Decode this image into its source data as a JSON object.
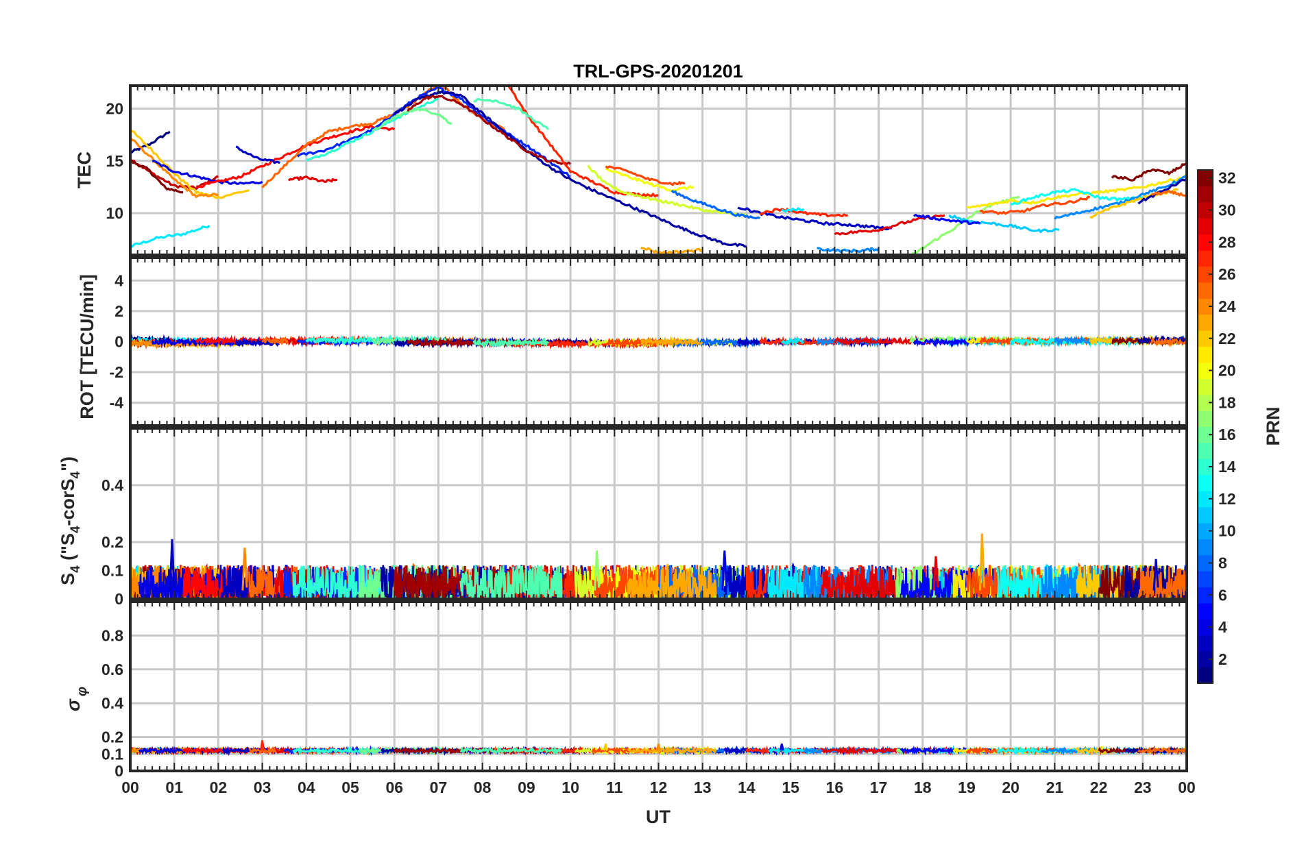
{
  "chart_data": {
    "type": "line",
    "title": "TRL-GPS-20201201",
    "xlabel": "UT",
    "x_range_hours": [
      0,
      24
    ],
    "x_tick_labels": [
      "00",
      "01",
      "02",
      "03",
      "04",
      "05",
      "06",
      "07",
      "08",
      "09",
      "10",
      "11",
      "12",
      "13",
      "14",
      "15",
      "16",
      "17",
      "18",
      "19",
      "20",
      "21",
      "22",
      "23",
      "00"
    ],
    "grid": true,
    "colorbar": {
      "label": "PRN",
      "range": [
        1,
        32
      ],
      "tick_values": [
        2,
        4,
        6,
        8,
        10,
        12,
        14,
        16,
        18,
        20,
        22,
        24,
        26,
        28,
        30,
        32
      ],
      "tick_labels": [
        "2",
        "4",
        "6",
        "8",
        "10",
        "12",
        "14",
        "16",
        "18",
        "20",
        "22",
        "24",
        "26",
        "28",
        "30",
        "32"
      ]
    },
    "panels": [
      {
        "id": "tec",
        "ylabel": "TEC",
        "ylim": [
          6,
          22.2
        ],
        "yticks": [
          10,
          15,
          20
        ],
        "ytick_labels": [
          "10",
          "15",
          "20"
        ],
        "series": [
          {
            "prn": 1,
            "t": [
              0.0,
              0.4,
              0.9
            ],
            "v": [
              15.8,
              16.5,
              17.8
            ]
          },
          {
            "prn": 12,
            "t": [
              0.0,
              0.6,
              1.2,
              1.8
            ],
            "v": [
              6.8,
              7.6,
              8.0,
              8.8
            ]
          },
          {
            "prn": 30,
            "t": [
              0.0,
              0.5,
              1.0,
              1.5,
              2.0
            ],
            "v": [
              15.2,
              13.8,
              12.6,
              12.4,
              13.5
            ]
          },
          {
            "prn": 32,
            "t": [
              0.0,
              0.4,
              0.8,
              1.2
            ],
            "v": [
              15.0,
              14.2,
              12.4,
              12.0
            ]
          },
          {
            "prn": 22,
            "t": [
              0.0,
              0.5,
              1.0,
              1.5,
              2.0,
              2.7
            ],
            "v": [
              18.0,
              16.0,
              13.8,
              12.0,
              11.5,
              12.2
            ]
          },
          {
            "prn": 24,
            "t": [
              0.0,
              0.5,
              1.0,
              1.5,
              2.0
            ],
            "v": [
              17.2,
              15.2,
              13.2,
              11.6,
              11.8
            ]
          },
          {
            "prn": 4,
            "t": [
              0.5,
              1.0,
              1.5,
              2.0,
              2.5,
              3.0
            ],
            "v": [
              15.0,
              14.0,
              13.5,
              13.0,
              12.8,
              13.0
            ]
          },
          {
            "prn": 28,
            "t": [
              1.5,
              2.0,
              2.5,
              3.0,
              3.5,
              4.0,
              4.5,
              5.0,
              5.5,
              6.0
            ],
            "v": [
              12.5,
              13.0,
              13.5,
              14.5,
              15.5,
              16.5,
              17.2,
              17.8,
              18.3,
              18.0
            ]
          },
          {
            "prn": 3,
            "t": [
              2.4,
              2.9,
              3.4
            ],
            "v": [
              16.3,
              15.2,
              14.8
            ]
          },
          {
            "prn": 25,
            "t": [
              3.0,
              3.5,
              4.0,
              4.5,
              5.0,
              5.5,
              6.0,
              6.4,
              6.8,
              7.1,
              7.5,
              8.0,
              8.5
            ],
            "v": [
              12.5,
              14.5,
              16.5,
              17.8,
              18.3,
              18.6,
              19.5,
              20.5,
              21.8,
              22.2,
              20.5,
              19.0,
              18.0
            ]
          },
          {
            "prn": 29,
            "t": [
              3.6,
              4.0,
              4.4,
              4.7
            ],
            "v": [
              13.2,
              13.4,
              13.0,
              13.2
            ]
          },
          {
            "prn": 6,
            "t": [
              3.8,
              4.4,
              5.0,
              5.6,
              6.0,
              6.5,
              7.0,
              7.5,
              8.0,
              8.5,
              9.0,
              9.5,
              10.0
            ],
            "v": [
              15.5,
              16.0,
              17.0,
              18.2,
              19.5,
              21.0,
              22.0,
              21.0,
              19.3,
              17.8,
              16.5,
              15.0,
              13.5
            ]
          },
          {
            "prn": 14,
            "t": [
              4.0,
              4.5,
              5.0,
              5.5,
              6.0,
              6.5,
              7.0
            ],
            "v": [
              15.0,
              15.8,
              16.8,
              17.8,
              19.0,
              20.0,
              21.0
            ]
          },
          {
            "prn": 16,
            "t": [
              5.5,
              6.0,
              6.5,
              7.0,
              7.3
            ],
            "v": [
              17.8,
              19.2,
              20.0,
              19.5,
              18.5
            ]
          },
          {
            "prn": 2,
            "t": [
              6.0,
              6.5,
              7.0,
              7.5,
              8.0,
              8.5,
              9.0,
              9.5,
              10.0,
              10.5,
              11.0,
              11.5,
              12.0,
              12.5,
              13.0,
              13.5,
              14.0
            ],
            "v": [
              19.5,
              20.8,
              21.6,
              21.3,
              19.5,
              17.8,
              16.0,
              14.5,
              13.2,
              12.2,
              11.3,
              10.4,
              9.5,
              8.6,
              7.8,
              7.1,
              6.8
            ]
          },
          {
            "prn": 31,
            "t": [
              6.3,
              6.7,
              7.0,
              7.5,
              8.0,
              8.5,
              9.0,
              9.5,
              10.0
            ],
            "v": [
              19.8,
              21.0,
              21.2,
              20.5,
              19.0,
              17.5,
              16.0,
              15.0,
              14.7
            ]
          },
          {
            "prn": 27,
            "t": [
              8.6,
              9.0,
              9.5,
              10.0,
              10.5,
              11.0,
              11.5,
              12.0
            ],
            "v": [
              22.2,
              19.5,
              16.8,
              14.0,
              13.0,
              12.0,
              11.8,
              11.7
            ]
          },
          {
            "prn": 15,
            "t": [
              7.8,
              8.3,
              8.8,
              9.5
            ],
            "v": [
              20.8,
              20.8,
              20.0,
              18.0
            ]
          },
          {
            "prn": 19,
            "t": [
              10.4,
              10.8,
              11.2,
              11.6,
              12.0,
              12.5,
              13.0,
              13.5,
              14.0
            ],
            "v": [
              14.5,
              12.8,
              12.0,
              11.6,
              11.2,
              10.8,
              10.3,
              10.0,
              9.8
            ]
          },
          {
            "prn": 20,
            "t": [
              10.8,
              11.3,
              11.8,
              12.3,
              12.8
            ],
            "v": [
              14.2,
              13.5,
              12.8,
              12.2,
              12.5
            ]
          },
          {
            "prn": 26,
            "t": [
              10.8,
              11.3,
              11.8,
              12.3,
              12.6
            ],
            "v": [
              14.5,
              14.0,
              13.2,
              12.8,
              12.9
            ]
          },
          {
            "prn": 8,
            "t": [
              12.3,
              12.8,
              13.3,
              13.8,
              14.3
            ],
            "v": [
              12.1,
              11.2,
              10.5,
              9.8,
              9.5
            ]
          },
          {
            "prn": 23,
            "t": [
              11.6,
              12.0,
              12.5,
              13.0
            ],
            "v": [
              6.8,
              6.2,
              6.3,
              6.5
            ]
          },
          {
            "prn": 3,
            "t": [
              13.8,
              14.3,
              14.8,
              15.3,
              15.8,
              16.3,
              16.8,
              17.3
            ],
            "v": [
              10.6,
              10.0,
              9.6,
              9.3,
              9.0,
              8.9,
              8.7,
              8.5
            ]
          },
          {
            "prn": 27,
            "t": [
              14.3,
              14.8,
              15.3,
              15.8,
              16.3
            ],
            "v": [
              10.0,
              10.4,
              10.0,
              9.8,
              9.8
            ]
          },
          {
            "prn": 12,
            "t": [
              14.8,
              15.3
            ],
            "v": [
              10.2,
              10.4
            ]
          },
          {
            "prn": 9,
            "t": [
              15.6,
              16.1,
              16.6,
              17.0
            ],
            "v": [
              6.6,
              6.4,
              6.4,
              6.6
            ]
          },
          {
            "prn": 29,
            "t": [
              16.0,
              16.5,
              17.0,
              17.5,
              18.0,
              18.5
            ],
            "v": [
              8.0,
              8.2,
              8.4,
              9.0,
              9.5,
              9.8
            ]
          },
          {
            "prn": 17,
            "t": [
              17.7,
              18.2,
              18.7,
              19.2,
              19.7,
              20.2
            ],
            "v": [
              5.8,
              7.2,
              8.5,
              10.0,
              11.0,
              11.5
            ]
          },
          {
            "prn": 11,
            "t": [
              18.6,
              19.1,
              19.6,
              20.1,
              20.6,
              21.1
            ],
            "v": [
              9.8,
              9.2,
              9.0,
              8.7,
              8.3,
              8.4
            ]
          },
          {
            "prn": 5,
            "t": [
              17.8,
              18.3,
              18.8,
              19.3
            ],
            "v": [
              9.8,
              9.5,
              9.2,
              9.0
            ]
          },
          {
            "prn": 21,
            "t": [
              19.0,
              19.5,
              20.0,
              20.5,
              21.0,
              21.5,
              22.0,
              22.5,
              23.0,
              23.5,
              24.0
            ],
            "v": [
              10.5,
              10.8,
              11.2,
              11.0,
              11.5,
              11.8,
              12.0,
              12.2,
              12.5,
              13.0,
              13.5
            ]
          },
          {
            "prn": 26,
            "t": [
              19.3,
              19.8,
              20.3,
              20.8,
              21.3,
              21.8
            ],
            "v": [
              10.2,
              10.0,
              10.2,
              10.8,
              11.0,
              11.5
            ]
          },
          {
            "prn": 13,
            "t": [
              20.0,
              20.5,
              21.0,
              21.5,
              22.0,
              22.5,
              23.0
            ],
            "v": [
              10.8,
              11.5,
              12.0,
              12.2,
              11.5,
              11.3,
              11.5
            ]
          },
          {
            "prn": 9,
            "t": [
              21.0,
              21.5,
              22.0,
              22.5,
              23.0,
              23.5,
              24.0
            ],
            "v": [
              9.5,
              10.0,
              10.5,
              11.0,
              11.8,
              12.5,
              13.5
            ]
          },
          {
            "prn": 22,
            "t": [
              21.8,
              22.3,
              22.8,
              23.3,
              23.8
            ],
            "v": [
              9.6,
              10.5,
              11.2,
              11.8,
              12.2
            ]
          },
          {
            "prn": 32,
            "t": [
              22.3,
              22.8,
              23.2,
              23.6,
              24.0
            ],
            "v": [
              13.5,
              13.2,
              14.2,
              13.8,
              14.8
            ]
          },
          {
            "prn": 2,
            "t": [
              22.9,
              23.4,
              24.0
            ],
            "v": [
              11.0,
              12.0,
              13.3
            ]
          },
          {
            "prn": 25,
            "t": [
              23.2,
              23.6,
              24.0
            ],
            "v": [
              11.8,
              12.0,
              11.7
            ]
          }
        ]
      },
      {
        "id": "rot",
        "ylabel": "ROT [TECU/min]",
        "ylim": [
          -5.5,
          5.5
        ],
        "yticks": [
          -4,
          -2,
          0,
          2,
          4
        ],
        "ytick_labels": [
          "-4",
          "-2",
          "0",
          "2",
          "4"
        ],
        "typical_amplitude": 0.15
      },
      {
        "id": "s4",
        "ylabel": "S4 (\"S4-corS4\")",
        "ylabel_main": "S",
        "ylabel_sub": "4",
        "ylabel_paren_open": " (\"S",
        "ylabel_mid": "-corS",
        "ylabel_paren_close": "\")",
        "ylim": [
          0,
          0.6
        ],
        "yticks": [
          0,
          0.1,
          0.2,
          0.4
        ],
        "ytick_labels": [
          "0",
          "0.1",
          "0.2",
          "0.4"
        ],
        "typical_range": [
          0.0,
          0.12
        ],
        "peaks": [
          {
            "t": 0.95,
            "v": 0.21,
            "prn": 3
          },
          {
            "t": 2.6,
            "v": 0.18,
            "prn": 24
          },
          {
            "t": 13.5,
            "v": 0.17,
            "prn": 4
          },
          {
            "t": 10.6,
            "v": 0.17,
            "prn": 17
          },
          {
            "t": 19.35,
            "v": 0.23,
            "prn": 23
          },
          {
            "t": 18.3,
            "v": 0.15,
            "prn": 29
          },
          {
            "t": 23.3,
            "v": 0.14,
            "prn": 3
          }
        ]
      },
      {
        "id": "sigma_phi",
        "ylabel": "σ φ",
        "ylabel_sigma": "σ",
        "ylabel_phi": "φ",
        "ylim": [
          0,
          1.0
        ],
        "yticks": [
          0,
          0.1,
          0.2,
          0.4,
          0.6,
          0.8
        ],
        "ytick_labels": [
          "0",
          "0.1",
          "0.2",
          "0.4",
          "0.6",
          "0.8"
        ],
        "baseline": 0.12,
        "peaks": [
          {
            "t": 3.0,
            "v": 0.18,
            "prn": 27
          },
          {
            "t": 14.8,
            "v": 0.16,
            "prn": 4
          },
          {
            "t": 10.8,
            "v": 0.16,
            "prn": 22
          },
          {
            "t": 12.0,
            "v": 0.16,
            "prn": 24
          }
        ]
      }
    ]
  }
}
